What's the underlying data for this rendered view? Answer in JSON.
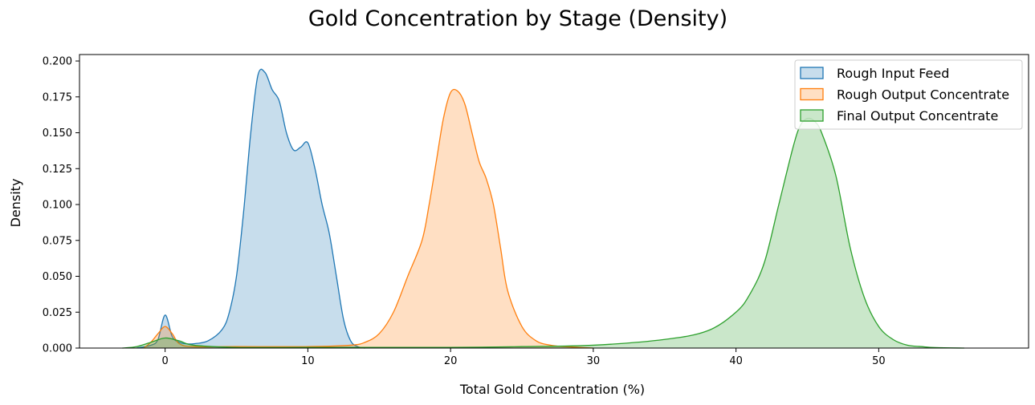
{
  "chart_data": {
    "type": "area",
    "title": "Gold Concentration by Stage (Density)",
    "xlabel": "Total Gold Concentration (%)",
    "ylabel": "Density",
    "xlim": [
      -6,
      60.5
    ],
    "ylim": [
      0,
      0.2045
    ],
    "xticks": [
      0,
      10,
      20,
      30,
      40,
      50
    ],
    "xtick_labels": [
      "0",
      "10",
      "20",
      "30",
      "40",
      "50"
    ],
    "yticks": [
      0,
      0.025,
      0.05,
      0.075,
      0.1,
      0.125,
      0.15,
      0.175,
      0.2
    ],
    "ytick_labels": [
      "0.000",
      "0.025",
      "0.050",
      "0.075",
      "0.100",
      "0.125",
      "0.150",
      "0.175",
      "0.200"
    ],
    "grid": false,
    "legend_position": "top-right",
    "series": [
      {
        "name": "Rough Input Feed",
        "color": "#1f77b4",
        "x": [
          -2,
          -1,
          -0.5,
          0,
          0.5,
          1,
          1.5,
          2,
          3,
          4,
          4.5,
          5,
          5.5,
          6,
          6.5,
          7,
          7.5,
          8,
          8.5,
          9,
          9.5,
          10,
          10.5,
          11,
          11.5,
          12,
          12.5,
          13,
          13.5,
          14
        ],
        "y": [
          0,
          0.002,
          0.006,
          0.023,
          0.008,
          0.004,
          0.003,
          0.003,
          0.005,
          0.013,
          0.025,
          0.05,
          0.095,
          0.15,
          0.19,
          0.192,
          0.18,
          0.172,
          0.15,
          0.138,
          0.14,
          0.143,
          0.125,
          0.1,
          0.08,
          0.05,
          0.02,
          0.005,
          0.001,
          0
        ]
      },
      {
        "name": "Rough Output Concentrate",
        "color": "#ff7f0e",
        "x": [
          -1.5,
          -1,
          -0.5,
          0,
          0.5,
          1,
          2,
          5,
          10,
          13,
          14,
          15,
          16,
          17,
          18,
          18.5,
          19,
          19.5,
          20,
          20.5,
          21,
          21.5,
          22,
          22.5,
          23,
          23.5,
          24,
          25,
          26,
          27,
          28,
          30
        ],
        "y": [
          0,
          0.004,
          0.01,
          0.015,
          0.01,
          0.003,
          0.001,
          0.001,
          0.001,
          0.002,
          0.004,
          0.01,
          0.025,
          0.05,
          0.075,
          0.1,
          0.13,
          0.16,
          0.178,
          0.179,
          0.17,
          0.15,
          0.13,
          0.118,
          0.1,
          0.07,
          0.04,
          0.015,
          0.005,
          0.002,
          0.001,
          0
        ]
      },
      {
        "name": "Final Output Concentrate",
        "color": "#2ca02c",
        "x": [
          -3,
          -2,
          -1,
          0,
          1,
          2,
          5,
          10,
          20,
          25,
          30,
          35,
          38,
          40,
          41,
          42,
          43,
          44,
          44.5,
          45,
          45.5,
          46,
          47,
          48,
          49,
          50,
          51,
          52,
          53,
          54,
          56
        ],
        "y": [
          0,
          0.001,
          0.004,
          0.007,
          0.005,
          0.002,
          0.0005,
          0.0005,
          0.0005,
          0.001,
          0.002,
          0.006,
          0.012,
          0.025,
          0.038,
          0.06,
          0.1,
          0.14,
          0.155,
          0.16,
          0.158,
          0.15,
          0.12,
          0.07,
          0.035,
          0.015,
          0.006,
          0.002,
          0.001,
          0.0003,
          0
        ]
      }
    ]
  }
}
